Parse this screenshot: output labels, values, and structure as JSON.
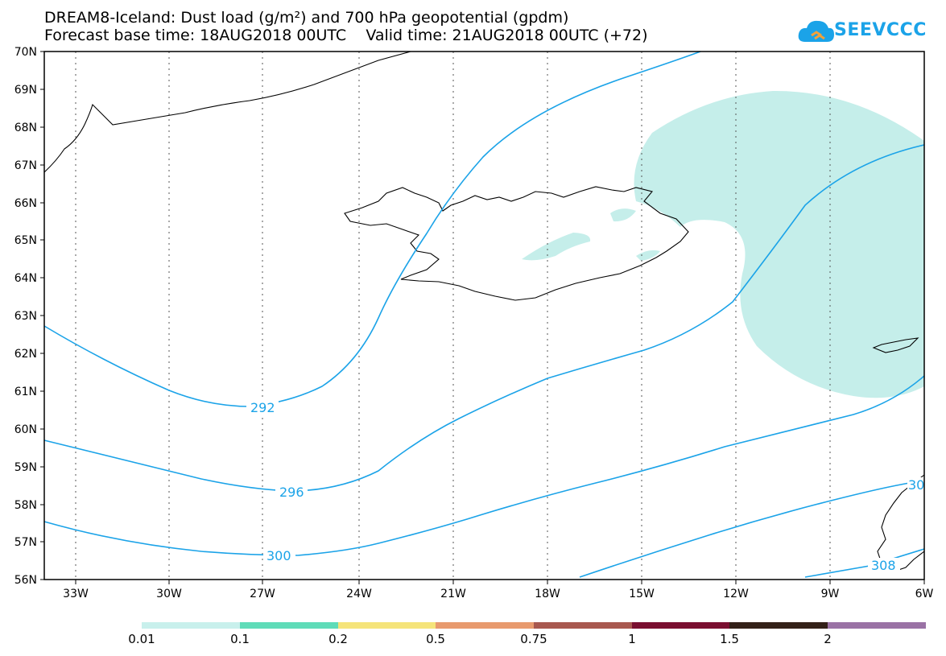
{
  "title": {
    "line1": "DREAM8-Iceland: Dust load (g/m²) and 700 hPa geopotential (gpdm)",
    "line2": "Forecast base time: 18AUG2018 00UTC    Valid time: 21AUG2018 00UTC (+72)"
  },
  "logo": {
    "text": "SEEVCCC",
    "icon": "cloud-icon",
    "color": "#1ba3e8"
  },
  "axes": {
    "lat_labels": [
      "70N",
      "69N",
      "68N",
      "67N",
      "66N",
      "65N",
      "64N",
      "63N",
      "62N",
      "61N",
      "60N",
      "59N",
      "58N",
      "57N",
      "56N"
    ],
    "lon_labels": [
      "33W",
      "30W",
      "27W",
      "24W",
      "21W",
      "18W",
      "15W",
      "12W",
      "9W",
      "6W"
    ]
  },
  "contours": {
    "color": "#1ba3e8",
    "labels": [
      "292",
      "296",
      "300",
      "308",
      "30"
    ]
  },
  "dust_fill_color": "#c5eeea",
  "legend": {
    "colors": [
      "#c8f0ec",
      "#5fdcb8",
      "#f5e47a",
      "#e89a6e",
      "#a8584f",
      "#7a0f30",
      "#332018",
      "#9a72a5"
    ],
    "labels": [
      "0.01",
      "0.1",
      "0.2",
      "0.5",
      "0.75",
      "1",
      "1.5",
      "2"
    ]
  }
}
